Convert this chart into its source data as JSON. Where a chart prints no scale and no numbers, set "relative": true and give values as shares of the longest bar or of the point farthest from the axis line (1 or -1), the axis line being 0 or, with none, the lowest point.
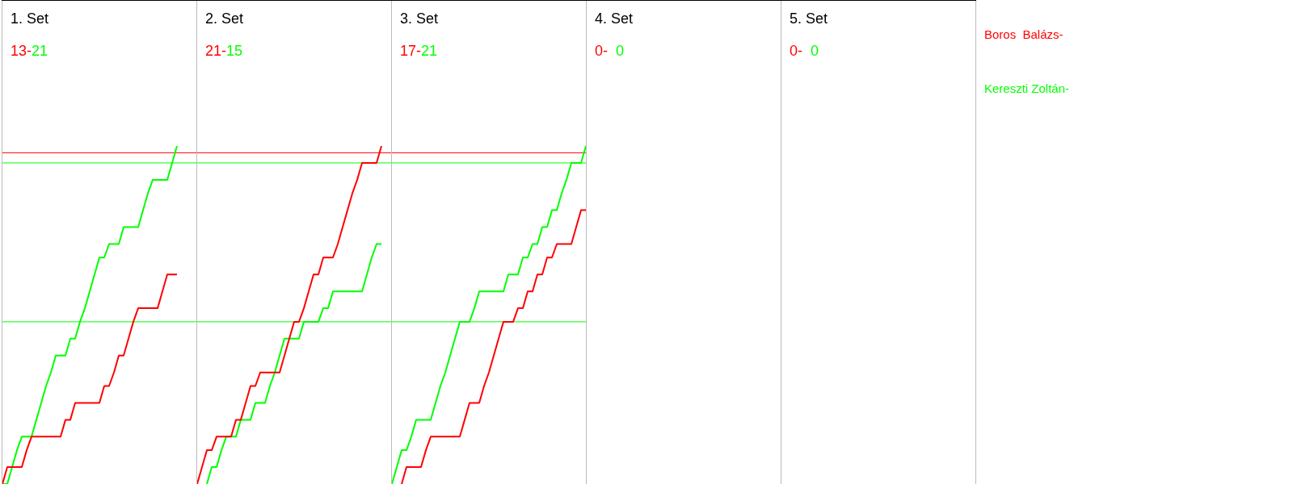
{
  "chart_data": [
    {
      "type": "line",
      "relative": true,
      "title": "1. Set",
      "annotations": [
        "13-",
        "21"
      ],
      "categories": [
        null,
        null,
        null,
        null,
        null,
        null,
        null,
        null,
        null,
        null,
        null,
        null,
        null,
        null,
        null,
        null,
        null,
        null,
        null,
        null,
        null,
        null,
        null,
        null,
        null,
        null,
        null,
        null,
        null,
        null,
        null,
        null,
        null,
        null,
        null,
        null,
        null,
        null,
        null,
        null,
        null
      ],
      "series": [
        {
          "color": "#ff0000",
          "values": [
            0,
            0.05,
            0.05,
            0.05,
            0.05,
            0.1,
            0.14,
            0.14,
            0.14,
            0.14,
            0.14,
            0.14,
            0.14,
            0.19,
            0.19,
            0.24,
            0.24,
            0.24,
            0.24,
            0.24,
            0.24,
            0.29,
            0.29,
            0.33,
            0.38,
            0.38,
            0.43,
            0.48,
            0.52,
            0.52,
            0.52,
            0.52,
            0.52,
            0.57,
            0.62,
            0.62,
            0.62,
            null,
            null,
            null,
            null
          ]
        },
        {
          "color": "#00ff00",
          "values": [
            0,
            0,
            0.05,
            0.1,
            0.14,
            0.14,
            0.14,
            0.19,
            0.24,
            0.29,
            0.33,
            0.38,
            0.38,
            0.38,
            0.43,
            0.43,
            0.48,
            0.52,
            0.57,
            0.62,
            0.67,
            0.67,
            0.71,
            0.71,
            0.71,
            0.76,
            0.76,
            0.76,
            0.76,
            0.81,
            0.86,
            0.9,
            0.9,
            0.9,
            0.9,
            0.95,
            1,
            null,
            null,
            null,
            null
          ]
        }
      ],
      "tick_labels": false,
      "ref_lines": [
        {
          "axis": "y",
          "value": 0.98,
          "color": "#ff0000"
        },
        {
          "axis": "y",
          "value": 0.95,
          "color": "#00ff00"
        },
        {
          "axis": "y",
          "value": 0.48,
          "color": "#00ff00"
        }
      ]
    },
    {
      "type": "line",
      "relative": true,
      "title": "2. Set",
      "annotations": [
        "21-",
        "15"
      ],
      "categories": [
        null,
        null,
        null,
        null,
        null,
        null,
        null,
        null,
        null,
        null,
        null,
        null,
        null,
        null,
        null,
        null,
        null,
        null,
        null,
        null,
        null,
        null,
        null,
        null,
        null,
        null,
        null,
        null,
        null,
        null,
        null,
        null,
        null,
        null,
        null,
        null,
        null,
        null,
        null,
        null,
        null
      ],
      "series": [
        {
          "color": "#ff0000",
          "values": [
            0,
            0.05,
            0.1,
            0.1,
            0.14,
            0.14,
            0.14,
            0.14,
            0.19,
            0.19,
            0.24,
            0.29,
            0.29,
            0.33,
            0.33,
            0.33,
            0.33,
            0.33,
            0.38,
            0.43,
            0.48,
            0.48,
            0.52,
            0.57,
            0.62,
            0.62,
            0.67,
            0.67,
            0.67,
            0.71,
            0.76,
            0.81,
            0.86,
            0.9,
            0.95,
            0.95,
            0.95,
            0.95,
            1,
            null,
            null
          ]
        },
        {
          "color": "#00ff00",
          "values": [
            null,
            null,
            0,
            0.05,
            0.05,
            0.1,
            0.14,
            0.14,
            0.14,
            0.19,
            0.19,
            0.19,
            0.24,
            0.24,
            0.24,
            0.29,
            0.33,
            0.38,
            0.43,
            0.43,
            0.43,
            0.43,
            0.48,
            0.48,
            0.48,
            0.48,
            0.52,
            0.52,
            0.57,
            0.57,
            0.57,
            0.57,
            0.57,
            0.57,
            0.57,
            0.62,
            0.67,
            0.71,
            0.71,
            null,
            null
          ]
        }
      ],
      "tick_labels": false,
      "ref_lines": [
        {
          "axis": "y",
          "value": 0.98,
          "color": "#ff0000"
        },
        {
          "axis": "y",
          "value": 0.95,
          "color": "#00ff00"
        },
        {
          "axis": "y",
          "value": 0.48,
          "color": "#00ff00"
        }
      ]
    },
    {
      "type": "line",
      "relative": true,
      "title": "3. Set",
      "annotations": [
        "17-",
        "21"
      ],
      "categories": [
        null,
        null,
        null,
        null,
        null,
        null,
        null,
        null,
        null,
        null,
        null,
        null,
        null,
        null,
        null,
        null,
        null,
        null,
        null,
        null,
        null,
        null,
        null,
        null,
        null,
        null,
        null,
        null,
        null,
        null,
        null,
        null,
        null,
        null,
        null,
        null,
        null,
        null,
        null,
        null,
        null
      ],
      "series": [
        {
          "color": "#ff0000",
          "values": [
            null,
            null,
            0,
            0.05,
            0.05,
            0.05,
            0.05,
            0.1,
            0.14,
            0.14,
            0.14,
            0.14,
            0.14,
            0.14,
            0.14,
            0.19,
            0.24,
            0.24,
            0.24,
            0.29,
            0.33,
            0.38,
            0.43,
            0.48,
            0.48,
            0.48,
            0.52,
            0.52,
            0.57,
            0.57,
            0.62,
            0.62,
            0.67,
            0.67,
            0.71,
            0.71,
            0.71,
            0.71,
            0.76,
            0.81,
            0.81
          ]
        },
        {
          "color": "#00ff00",
          "values": [
            0,
            0.05,
            0.1,
            0.1,
            0.14,
            0.19,
            0.19,
            0.19,
            0.19,
            0.24,
            0.29,
            0.33,
            0.38,
            0.43,
            0.48,
            0.48,
            0.48,
            0.52,
            0.57,
            0.57,
            0.57,
            0.57,
            0.57,
            0.57,
            0.62,
            0.62,
            0.62,
            0.67,
            0.67,
            0.71,
            0.71,
            0.76,
            0.76,
            0.81,
            0.81,
            0.86,
            0.9,
            0.95,
            0.95,
            0.95,
            1
          ]
        }
      ],
      "tick_labels": false,
      "ref_lines": [
        {
          "axis": "y",
          "value": 0.98,
          "color": "#ff0000"
        },
        {
          "axis": "y",
          "value": 0.95,
          "color": "#00ff00"
        },
        {
          "axis": "y",
          "value": 0.48,
          "color": "#00ff00"
        }
      ]
    },
    {
      "type": "other",
      "title": "4. Set",
      "annotations": [
        "0-",
        "0"
      ],
      "series": [
        {
          "color": "#ff0000"
        },
        {
          "color": "#00ff00"
        }
      ]
    },
    {
      "type": "other",
      "title": "5. Set",
      "annotations": [
        "0-",
        "0"
      ],
      "series": [
        {
          "name": "Boros  Balázs-",
          "color": "#ff0000"
        },
        {
          "name": "Kereszti Zoltán-",
          "color": "#00ff00"
        }
      ]
    }
  ]
}
